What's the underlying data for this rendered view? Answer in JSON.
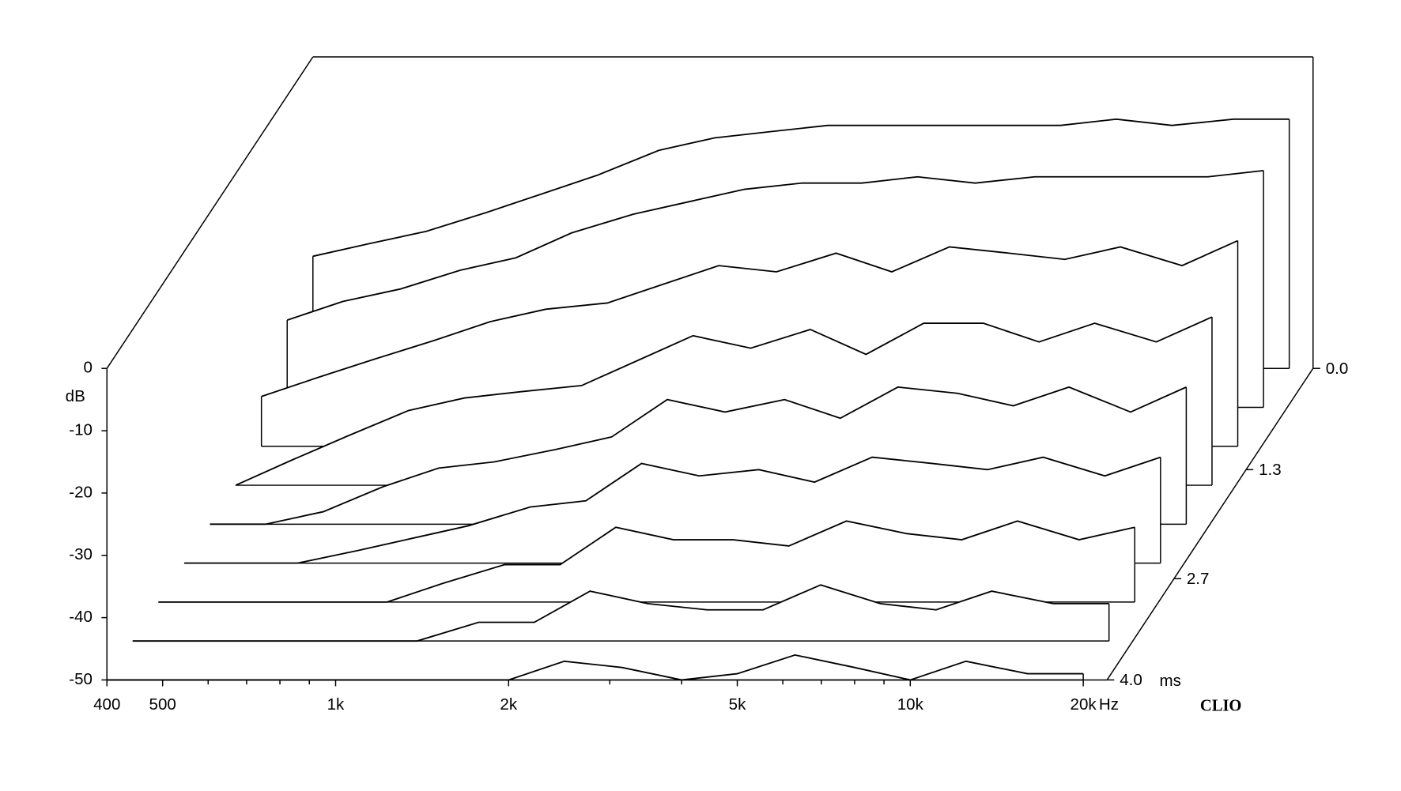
{
  "chart_data": {
    "type": "waterfall",
    "x_unit": "Hz",
    "y_label": "dB",
    "z_unit": "ms",
    "brand": "CLIO",
    "x": [
      400,
      500,
      630,
      800,
      1000,
      1250,
      1600,
      2000,
      2500,
      3150,
      4000,
      5000,
      6300,
      8000,
      10000,
      12500,
      16000,
      20000
    ],
    "z": [
      0,
      0.5,
      1,
      1.5,
      2,
      2.5,
      3,
      3.5,
      4
    ],
    "series": [
      {
        "values": [
          -32,
          -30,
          -28,
          -25,
          -22,
          -19,
          -15,
          -13,
          -12,
          -11,
          -11,
          -11,
          -11,
          -11,
          -10,
          -11,
          -10,
          -10
        ]
      },
      {
        "values": [
          -36,
          -33,
          -31,
          -28,
          -26,
          -22,
          -19,
          -17,
          -15,
          -14,
          -14,
          -13,
          -14,
          -13,
          -13,
          -13,
          -13,
          -12
        ]
      },
      {
        "values": [
          -42,
          -39,
          -36,
          -33,
          -30,
          -28,
          -27,
          -24,
          -21,
          -22,
          -19,
          -22,
          -18,
          -19,
          -20,
          -18,
          -21,
          -17
        ]
      },
      {
        "values": [
          -50,
          -46,
          -42,
          -38,
          -36,
          -35,
          -34,
          -30,
          -26,
          -28,
          -25,
          -29,
          -24,
          -24,
          -27,
          -24,
          -27,
          -23
        ]
      },
      {
        "values": [
          -50,
          -50,
          -48,
          -44,
          -41,
          -40,
          -38,
          -36,
          -30,
          -32,
          -30,
          -33,
          -28,
          -29,
          -31,
          -28,
          -32,
          -28
        ]
      },
      {
        "values": [
          -50,
          -50,
          -50,
          -48,
          -46,
          -44,
          -41,
          -40,
          -34,
          -36,
          -35,
          -37,
          -33,
          -34,
          -35,
          -33,
          -36,
          -33
        ]
      },
      {
        "values": [
          -50,
          -50,
          -50,
          -50,
          -50,
          -47,
          -44,
          -44,
          -38,
          -40,
          -40,
          -41,
          -37,
          -39,
          -40,
          -37,
          -40,
          -38
        ]
      },
      {
        "values": [
          -50,
          -50,
          -50,
          -50,
          -50,
          -50,
          -47,
          -47,
          -42,
          -44,
          -45,
          -45,
          -41,
          -44,
          -45,
          -42,
          -44,
          -44
        ]
      },
      {
        "values": [
          -50,
          -50,
          -50,
          -50,
          -50,
          -50,
          -50,
          -50,
          -47,
          -48,
          -50,
          -49,
          -46,
          -48,
          -50,
          -47,
          -49,
          -49
        ]
      }
    ],
    "xlim": [
      400,
      22000
    ],
    "ylim": [
      -50,
      0
    ],
    "zlim": [
      0,
      4
    ],
    "log_x": true,
    "xticks": [
      400,
      500,
      {
        "value": 1000,
        "label": "1k"
      },
      {
        "value": 2000,
        "label": "2k"
      },
      {
        "value": 5000,
        "label": "5k"
      },
      {
        "value": 10000,
        "label": "10k"
      },
      {
        "value": 20000,
        "label": "20k"
      }
    ],
    "xminorticks": [
      600,
      700,
      800,
      900,
      3000,
      4000,
      6000,
      7000,
      8000,
      9000
    ],
    "yticks": [
      0,
      -10,
      -20,
      -30,
      -40,
      -50
    ],
    "zticks": [
      {
        "value": 0,
        "label": "0.0"
      },
      1.3,
      2.7,
      {
        "value": 4,
        "label": "4.0"
      }
    ],
    "color": "#000000"
  }
}
